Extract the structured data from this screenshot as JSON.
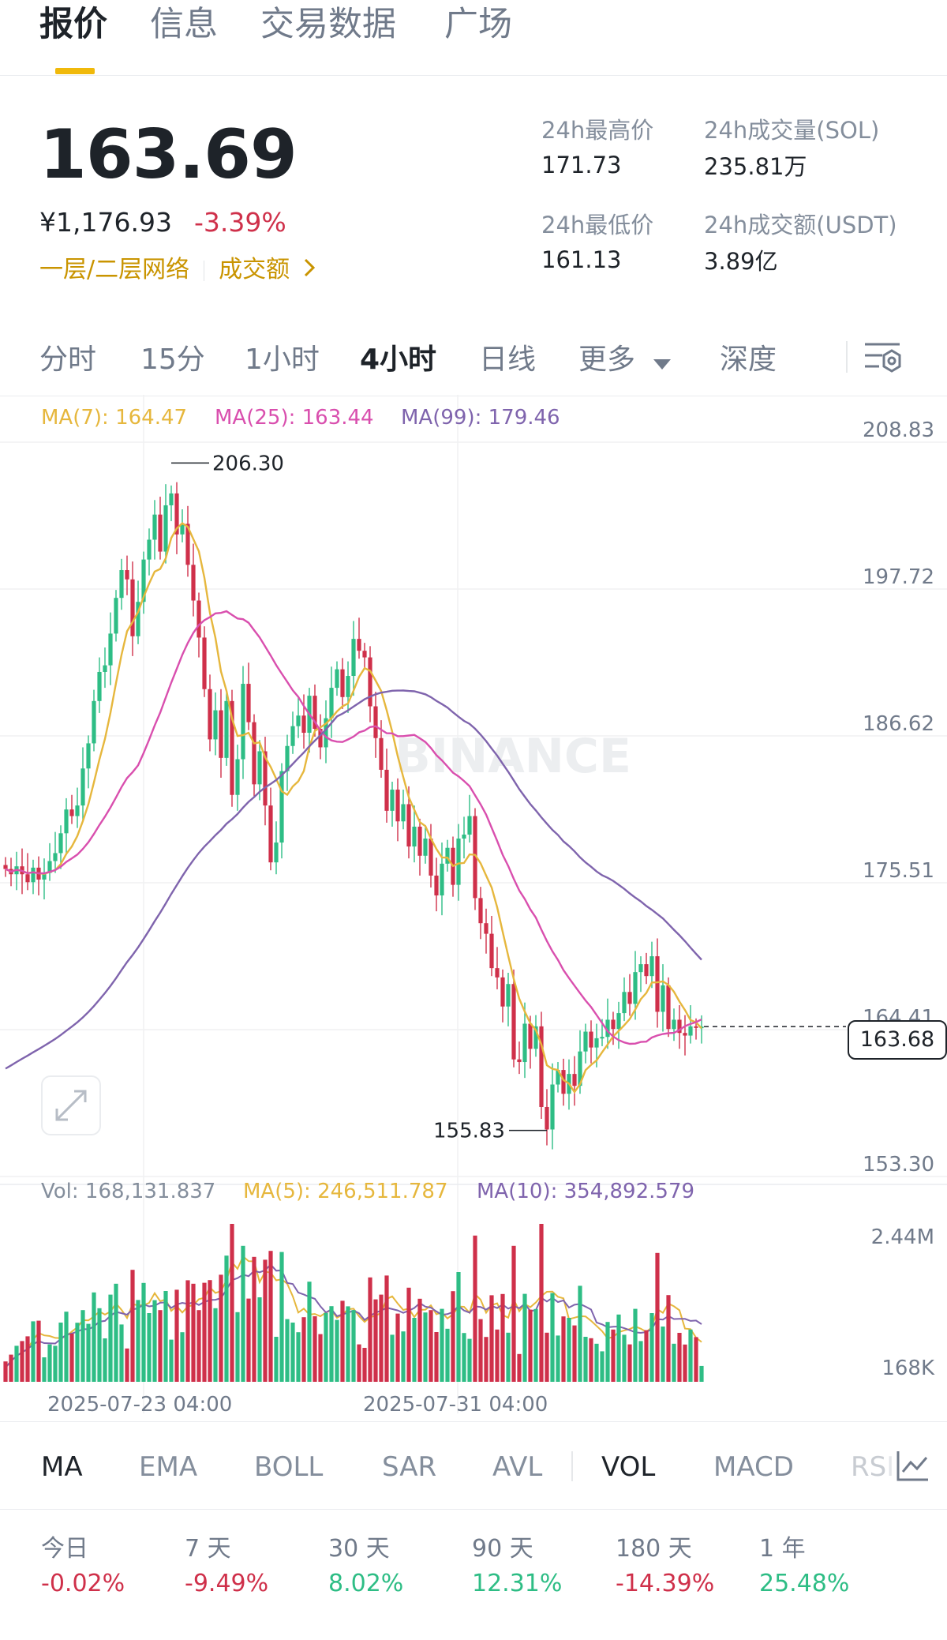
{
  "tabs": {
    "quote": "报价",
    "info": "信息",
    "trading_data": "交易数据",
    "square": "广场"
  },
  "header": {
    "last_price": "163.69",
    "cny_price": "¥1,176.93",
    "change_pct": "-3.39%",
    "layer_tag": "一层/二层网络",
    "volume_link": "成交额",
    "high_label": "24h最高价",
    "high_value": "171.73",
    "volume_sol_label": "24h成交量(SOL)",
    "volume_sol_value": "235.81万",
    "low_label": "24h最低价",
    "low_value": "161.13",
    "volume_usdt_label": "24h成交额(USDT)",
    "volume_usdt_value": "3.89亿"
  },
  "intervals": {
    "time": "分时",
    "m15": "15分",
    "h1": "1小时",
    "h4": "4小时",
    "day": "日线",
    "more": "更多",
    "depth": "深度"
  },
  "legend": {
    "ma7": "MA(7): 164.47",
    "ma25": "MA(25): 163.44",
    "ma99": "MA(99): 179.46",
    "vol": "Vol: 168,131.837",
    "vma5": "MA(5): 246,511.787",
    "vma10": "MA(10): 354,892.579"
  },
  "colors": {
    "up": "#2ebd85",
    "down": "#cf304a",
    "ma7": "#e6b73d",
    "ma25": "#d94fae",
    "ma99": "#7f64ad",
    "accent": "#f0b90b"
  },
  "watermark": "BINANCE",
  "chart_data": {
    "type": "candlestick",
    "interval": "4小时",
    "y_axis_ticks": [
      "208.83",
      "197.72",
      "186.62",
      "175.51",
      "164.41",
      "153.30"
    ],
    "ylim": [
      153.3,
      208.83
    ],
    "x_tick_labels": [
      "2025-07-23 04:00",
      "2025-07-31 04:00"
    ],
    "annotations": {
      "high": "206.30",
      "low": "155.83",
      "last": "163.68"
    },
    "close_series": [
      175.6,
      175.2,
      175.8,
      175.2,
      174.6,
      175.7,
      174.8,
      175.3,
      176.2,
      176.8,
      178.3,
      180.1,
      179.6,
      180.4,
      183.2,
      185.1,
      188.3,
      190.5,
      191.0,
      193.4,
      196.1,
      198.2,
      197.5,
      193.2,
      195.8,
      199.0,
      200.5,
      202.4,
      199.6,
      203.1,
      204.0,
      200.9,
      201.7,
      198.6,
      195.9,
      193.1,
      189.2,
      185.4,
      187.6,
      184.0,
      188.3,
      181.2,
      183.9,
      189.6,
      186.7,
      182.0,
      184.5,
      180.4,
      176.1,
      177.6,
      183.0,
      184.9,
      186.4,
      187.2,
      185.9,
      188.7,
      186.2,
      184.8,
      187.0,
      189.3,
      190.7,
      188.6,
      190.2,
      193.0,
      192.1,
      191.6,
      187.9,
      185.5,
      183.1,
      180.0,
      181.6,
      179.2,
      180.5,
      177.3,
      178.8,
      176.6,
      177.9,
      175.1,
      173.6,
      176.0,
      177.2,
      174.4,
      177.9,
      178.2,
      179.6,
      173.4,
      171.5,
      170.7,
      168.1,
      167.4,
      165.2,
      166.9,
      161.2,
      161.0,
      163.9,
      162.0,
      163.7,
      157.6,
      155.9,
      159.3,
      160.4,
      158.6,
      160.1,
      159.2,
      161.8,
      163.3,
      162.1,
      162.8,
      162.9,
      164.2,
      163.5,
      164.7,
      166.3,
      165.4,
      167.8,
      168.4,
      167.5,
      169.0,
      164.8,
      166.8,
      163.5,
      164.2,
      163.2,
      163.0,
      163.7,
      163.6,
      163.68
    ],
    "volume_axis": [
      "2.44M",
      "168K"
    ]
  },
  "indicators": {
    "ma": "MA",
    "ema": "EMA",
    "boll": "BOLL",
    "sar": "SAR",
    "avl": "AVL",
    "vol": "VOL",
    "macd": "MACD",
    "rsi": "RSI"
  },
  "performance": [
    {
      "label": "今日",
      "value": "-0.02%"
    },
    {
      "label": "7 天",
      "value": "-9.49%"
    },
    {
      "label": "30 天",
      "value": "8.02%"
    },
    {
      "label": "90 天",
      "value": "12.31%"
    },
    {
      "label": "180 天",
      "value": "-14.39%"
    },
    {
      "label": "1 年",
      "value": "25.48%"
    }
  ]
}
